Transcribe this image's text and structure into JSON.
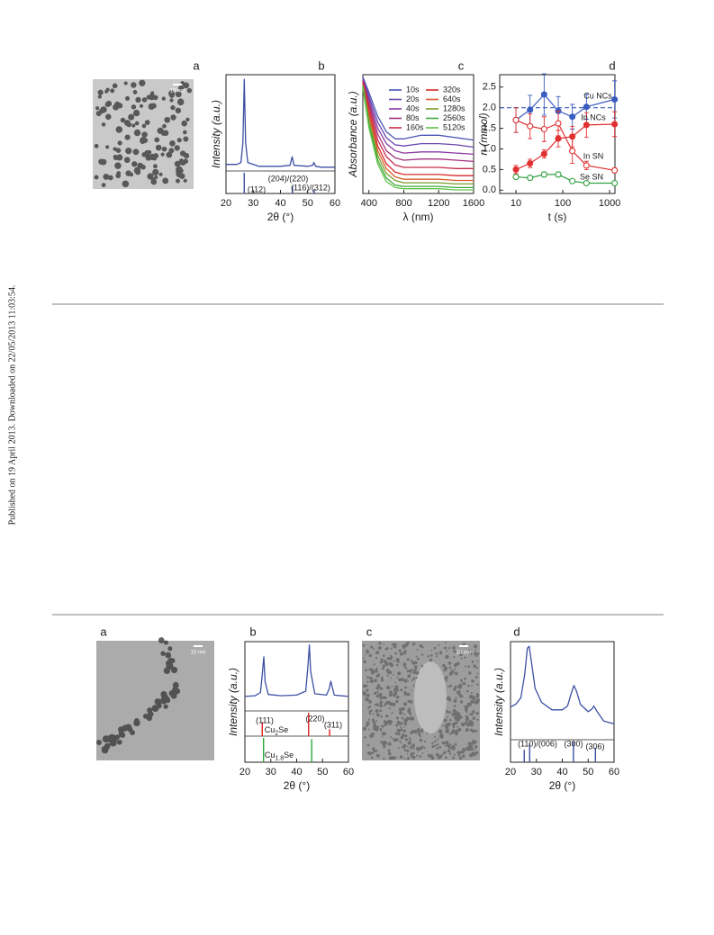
{
  "side_note": "Published on 19 April 2013. Downloaded on 22/05/2013 11:03:54.",
  "images": [
    {
      "label": "a",
      "scale_bar": "10 nm"
    },
    {
      "label": "a",
      "scale_bar": "10 nm"
    },
    {
      "label": "c",
      "scale_bar": "10 nm"
    }
  ],
  "chart_data": [
    {
      "type": "line",
      "panel": "b",
      "y_label": "Intensity (a.u.)",
      "x_label": "2θ (°)",
      "xlim": [
        20,
        60
      ],
      "xticks": [
        20,
        30,
        40,
        50,
        60
      ],
      "ylim": [
        0,
        1.02
      ],
      "x": [
        20,
        24,
        25.5,
        26.2,
        26.7,
        27.2,
        28,
        32,
        40,
        43.5,
        44.3,
        45,
        50,
        51.8,
        52.3,
        52.9,
        55,
        60
      ],
      "series": [
        {
          "color": "#3d4fa3",
          "values": [
            0.07,
            0.07,
            0.09,
            0.3,
            0.97,
            0.3,
            0.09,
            0.05,
            0.05,
            0.06,
            0.15,
            0.06,
            0.05,
            0.06,
            0.09,
            0.05,
            0.04,
            0.04
          ]
        }
      ],
      "references": [
        {
          "color": "#3d4fa3",
          "x": [
            26.7,
            44.4,
            52.4
          ],
          "values": [
            1,
            0.35,
            0.2
          ]
        }
      ],
      "peak_labels": [
        "(112)",
        "(204)/(220)",
        "(116)/(312)"
      ]
    },
    {
      "type": "line",
      "panel": "c",
      "y_label": "Absorbance (a.u.)",
      "x_label": "λ (nm)",
      "xlim": [
        330,
        1600
      ],
      "xticks": [
        400,
        800,
        1200,
        1600
      ],
      "ylim": [
        0,
        1
      ],
      "legend": "upper right",
      "x": [
        330,
        400,
        500,
        600,
        700,
        800,
        1000,
        1200,
        1400,
        1600
      ],
      "series": [
        {
          "name": "10s",
          "color": "#4a55b5",
          "values": [
            0.98,
            0.85,
            0.65,
            0.52,
            0.46,
            0.46,
            0.49,
            0.49,
            0.47,
            0.45
          ]
        },
        {
          "name": "20s",
          "color": "#6a48b0",
          "values": [
            0.97,
            0.82,
            0.6,
            0.47,
            0.41,
            0.4,
            0.42,
            0.42,
            0.41,
            0.39
          ]
        },
        {
          "name": "40s",
          "color": "#8a3aa0",
          "values": [
            0.96,
            0.79,
            0.55,
            0.42,
            0.36,
            0.34,
            0.35,
            0.35,
            0.34,
            0.33
          ]
        },
        {
          "name": "80s",
          "color": "#a2307e",
          "values": [
            0.95,
            0.76,
            0.5,
            0.36,
            0.3,
            0.28,
            0.29,
            0.29,
            0.28,
            0.27
          ]
        },
        {
          "name": "160s",
          "color": "#c82a4a",
          "values": [
            0.94,
            0.73,
            0.45,
            0.31,
            0.24,
            0.22,
            0.22,
            0.22,
            0.21,
            0.21
          ]
        },
        {
          "name": "320s",
          "color": "#d8282a",
          "values": [
            0.93,
            0.69,
            0.4,
            0.25,
            0.18,
            0.16,
            0.16,
            0.16,
            0.15,
            0.15
          ]
        },
        {
          "name": "640s",
          "color": "#de5a2a",
          "values": [
            0.92,
            0.66,
            0.36,
            0.21,
            0.14,
            0.12,
            0.12,
            0.12,
            0.11,
            0.11
          ]
        },
        {
          "name": "1280s",
          "color": "#7c9a2a",
          "values": [
            0.91,
            0.62,
            0.32,
            0.17,
            0.11,
            0.09,
            0.09,
            0.09,
            0.08,
            0.08
          ]
        },
        {
          "name": "2560s",
          "color": "#3eaa3e",
          "values": [
            0.9,
            0.58,
            0.28,
            0.13,
            0.07,
            0.06,
            0.06,
            0.06,
            0.05,
            0.05
          ]
        },
        {
          "name": "5120s",
          "color": "#62c24a",
          "values": [
            0.89,
            0.55,
            0.25,
            0.1,
            0.05,
            0.04,
            0.04,
            0.04,
            0.03,
            0.03
          ]
        }
      ]
    },
    {
      "type": "scatter",
      "panel": "d",
      "y_label": "n (mmol)",
      "x_label": "t (s)",
      "xlog": true,
      "xlim": [
        4.5,
        1300
      ],
      "xticks": [
        10,
        100,
        1000
      ],
      "ylim": [
        -0.08,
        2.8
      ],
      "yticks": [
        {
          "value": 0,
          "label": "0.0"
        },
        0.5,
        {
          "value": 1,
          "label": "1.0"
        },
        1.5,
        {
          "value": 2,
          "label": "2.0"
        },
        2.5
      ],
      "hline": 2,
      "hline_color": "#3a5cc0",
      "x": [
        10,
        20,
        40,
        80,
        160,
        320,
        1280
      ],
      "series": [
        {
          "name": "Cu NCs",
          "color": "#3a5cc0",
          "filled": true,
          "values": [
            1.7,
            1.95,
            2.32,
            1.92,
            1.78,
            2.02,
            2.2
          ],
          "errors": [
            0.3,
            0.35,
            0.5,
            0.35,
            0.3,
            0.3,
            0.45
          ]
        },
        {
          "name": "In NCs",
          "color": "#e03030",
          "filled": true,
          "values": [
            0.5,
            0.65,
            0.88,
            1.25,
            1.3,
            1.58,
            1.6
          ],
          "errors": [
            0.1,
            0.1,
            0.1,
            0.2,
            0.25,
            0.3,
            0.3
          ]
        },
        {
          "name": "In SN",
          "color": "#e03030",
          "filled": false,
          "values": [
            1.7,
            1.55,
            1.48,
            1.62,
            0.95,
            0.6,
            0.48
          ],
          "errors": [
            0.3,
            0.3,
            0.3,
            0.3,
            0.3,
            0.1,
            0.06
          ]
        },
        {
          "name": "Se SN",
          "color": "#30a040",
          "filled": false,
          "values": [
            0.32,
            0.3,
            0.38,
            0.38,
            0.22,
            0.17,
            0.17
          ],
          "errors": [
            0.05,
            0.05,
            0.06,
            0.06,
            0.04,
            0.02,
            0.02
          ]
        }
      ]
    },
    {
      "type": "line",
      "panel": "b",
      "y_label": "Intensity (a.u.)",
      "x_label": "2θ (°)",
      "xlim": [
        20,
        60
      ],
      "xticks": [
        20,
        30,
        40,
        50,
        60
      ],
      "ylim": [
        0,
        1.05
      ],
      "x": [
        20,
        24,
        26,
        26.8,
        27.3,
        27.8,
        29,
        34,
        40,
        43.5,
        44.4,
        44.9,
        45.4,
        47,
        51.5,
        52.6,
        53.2,
        54.5,
        60
      ],
      "series": [
        {
          "color": "#3d4fa3",
          "values": [
            0.22,
            0.23,
            0.28,
            0.6,
            0.82,
            0.45,
            0.25,
            0.23,
            0.24,
            0.3,
            0.7,
            1.0,
            0.6,
            0.26,
            0.24,
            0.34,
            0.45,
            0.24,
            0.22
          ]
        }
      ],
      "references": [
        {
          "name": [
            "Cu",
            "2",
            "Se"
          ],
          "color": "#e02020",
          "x": [
            26.7,
            44.6,
            52.7
          ],
          "values": [
            0.6,
            1,
            0.3
          ]
        },
        {
          "name": [
            "Cu",
            "1.8",
            "Se"
          ],
          "color": "#2aa83a",
          "x": [
            27.2,
            45.8
          ],
          "values": [
            1,
            0.95
          ]
        }
      ],
      "peak_labels": [
        "(111)",
        "(220)",
        "(311)"
      ]
    },
    {
      "type": "line",
      "panel": "d",
      "y_label": "Intensity (a.u.)",
      "x_label": "2θ (°)",
      "xlim": [
        20,
        60
      ],
      "xticks": [
        20,
        30,
        40,
        50,
        60
      ],
      "ylim": [
        0,
        1.05
      ],
      "x": [
        20,
        22,
        24,
        25.5,
        26.5,
        27.2,
        28,
        29.5,
        32,
        36,
        40,
        42,
        43.5,
        44.5,
        45.5,
        47,
        50,
        51.5,
        52.2,
        53.5,
        56,
        60
      ],
      "series": [
        {
          "color": "#3d4fa3",
          "values": [
            0.35,
            0.38,
            0.45,
            0.7,
            0.98,
            1,
            0.85,
            0.55,
            0.4,
            0.32,
            0.32,
            0.36,
            0.5,
            0.58,
            0.52,
            0.38,
            0.3,
            0.33,
            0.36,
            0.3,
            0.2,
            0.17
          ]
        }
      ],
      "references": [
        {
          "color": "#3d4fa3",
          "x": [
            25.3,
            27.4,
            44.3,
            52.8
          ],
          "values": [
            0.6,
            0.9,
            1,
            0.7
          ]
        }
      ],
      "peak_labels": [
        "(110)/(006)",
        "(300)",
        "(306)"
      ]
    }
  ]
}
